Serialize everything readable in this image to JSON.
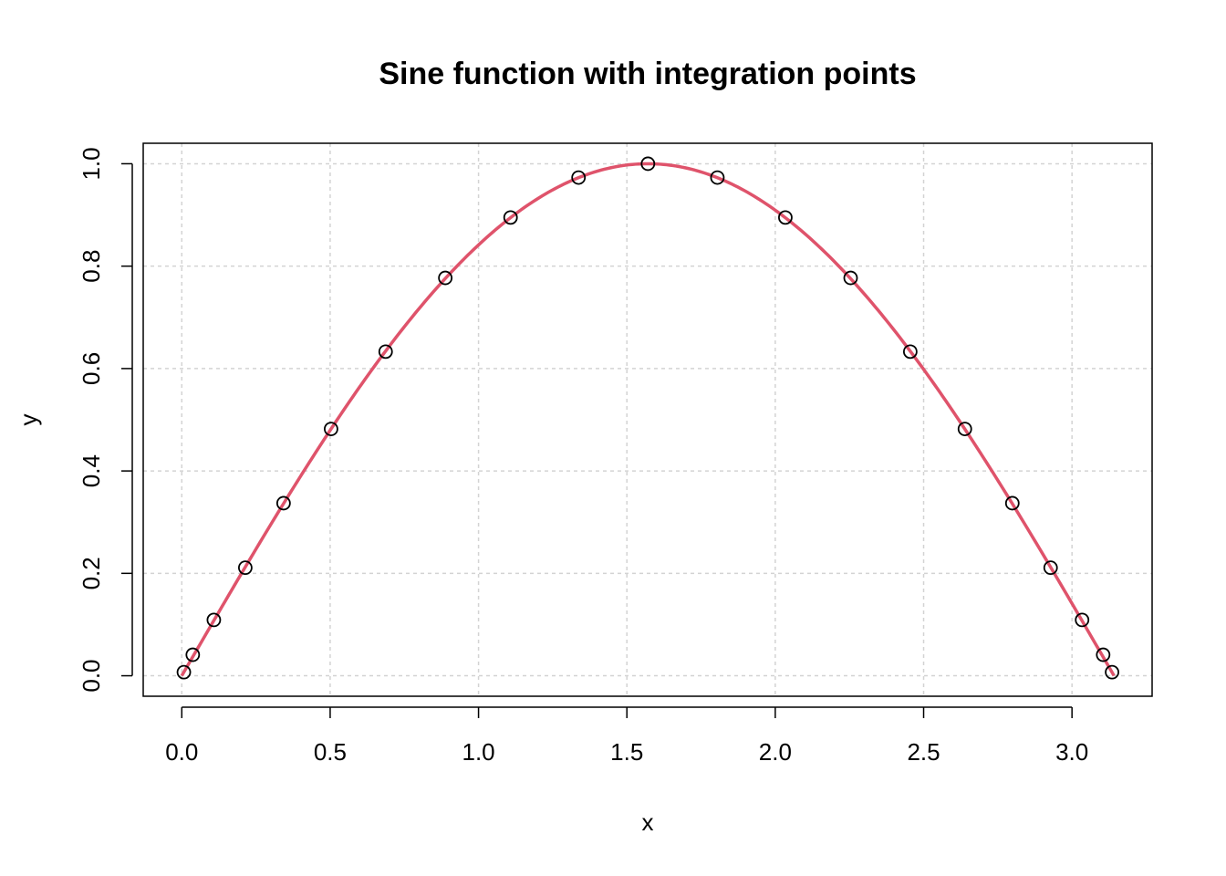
{
  "chart_data": {
    "type": "line",
    "title": "Sine function with integration points",
    "xlabel": "x",
    "ylabel": "y",
    "xlim": [
      -0.13,
      3.27
    ],
    "ylim": [
      -0.04,
      1.04
    ],
    "x_ticks": [
      "0.0",
      "0.5",
      "1.0",
      "1.5",
      "2.0",
      "2.5",
      "3.0"
    ],
    "y_ticks": [
      "0.0",
      "0.2",
      "0.4",
      "0.6",
      "0.8",
      "1.0"
    ],
    "grid": true,
    "curve_color": "#df536b",
    "point_color": "#000000",
    "series": [
      {
        "kind": "line",
        "function": "sin(x)",
        "x_range": [
          0,
          3.14159
        ]
      },
      {
        "kind": "points",
        "x": [
          0.007,
          0.037,
          0.108,
          0.214,
          0.343,
          0.503,
          0.687,
          0.888,
          1.108,
          1.337,
          1.571,
          1.805,
          2.034,
          2.254,
          2.455,
          2.639,
          2.799,
          2.928,
          3.034,
          3.105,
          3.135
        ],
        "y": [
          0.007,
          0.041,
          0.109,
          0.211,
          0.337,
          0.482,
          0.633,
          0.777,
          0.895,
          0.973,
          1.0,
          0.973,
          0.895,
          0.777,
          0.633,
          0.482,
          0.337,
          0.211,
          0.109,
          0.041,
          0.007
        ]
      }
    ]
  }
}
